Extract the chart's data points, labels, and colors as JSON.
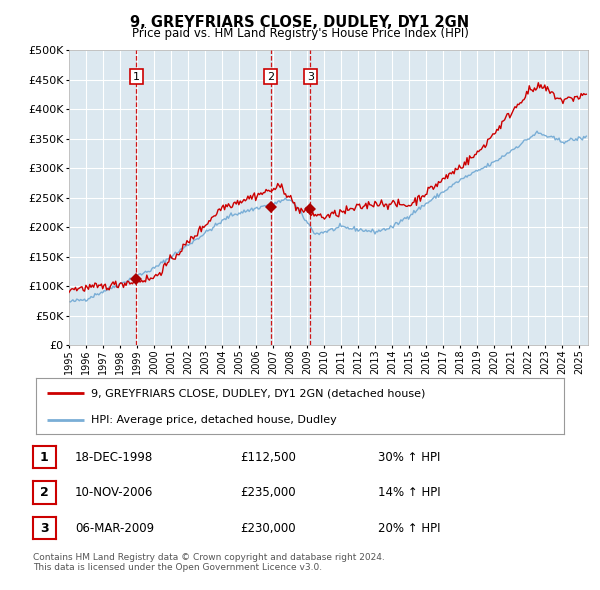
{
  "title": "9, GREYFRIARS CLOSE, DUDLEY, DY1 2GN",
  "subtitle": "Price paid vs. HM Land Registry's House Price Index (HPI)",
  "legend_line1": "9, GREYFRIARS CLOSE, DUDLEY, DY1 2GN (detached house)",
  "legend_line2": "HPI: Average price, detached house, Dudley",
  "table_rows": [
    [
      "1",
      "18-DEC-1998",
      "£112,500",
      "30% ↑ HPI"
    ],
    [
      "2",
      "10-NOV-2006",
      "£235,000",
      "14% ↑ HPI"
    ],
    [
      "3",
      "06-MAR-2009",
      "£230,000",
      "20% ↑ HPI"
    ]
  ],
  "footer_line1": "Contains HM Land Registry data © Crown copyright and database right 2024.",
  "footer_line2": "This data is licensed under the Open Government Licence v3.0.",
  "red_line_color": "#cc0000",
  "blue_line_color": "#7aaed6",
  "plot_bg_color": "#dce8f0",
  "marker_color": "#aa0000",
  "vline_color": "#cc0000",
  "box_color": "#cc0000",
  "trans_years": [
    1998.96,
    2006.86,
    2009.18
  ],
  "trans_prices": [
    112500,
    235000,
    230000
  ],
  "ylim": [
    0,
    500000
  ],
  "yticks": [
    0,
    50000,
    100000,
    150000,
    200000,
    250000,
    300000,
    350000,
    400000,
    450000,
    500000
  ],
  "xmin": 1995.0,
  "xmax": 2025.5
}
